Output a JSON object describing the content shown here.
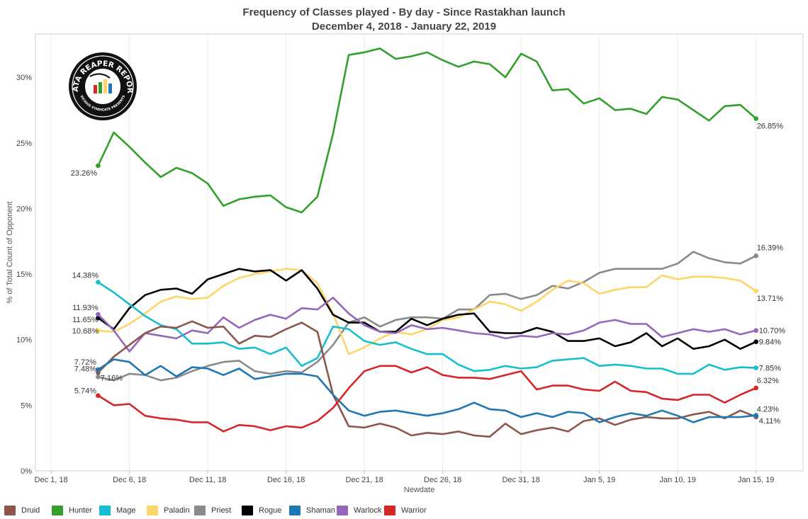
{
  "chart_data": {
    "type": "line",
    "title": "Frequency of Classes played - By day - Since Rastakhan launch",
    "subtitle": "December 4, 2018 - January 22, 2019",
    "xlabel": "Newdate",
    "ylabel": "% of Total Count of Opponent",
    "x_ticks": [
      "Dec 1, 18",
      "Dec 6, 18",
      "Dec 11, 18",
      "Dec 16, 18",
      "Dec 21, 18",
      "Dec 26, 18",
      "Dec 31, 18",
      "Jan 5, 19",
      "Jan 10, 19",
      "Jan 15, 19"
    ],
    "x_range": [
      "2018-11-30",
      "2019-01-18"
    ],
    "y_ticks": [
      "0%",
      "5%",
      "10%",
      "15%",
      "20%",
      "25%",
      "30%"
    ],
    "ylim": [
      0,
      33.3
    ],
    "grid": "vertical",
    "legend_position": "bottom",
    "dates": [
      "2018-12-04",
      "2018-12-05",
      "2018-12-06",
      "2018-12-07",
      "2018-12-08",
      "2018-12-09",
      "2018-12-10",
      "2018-12-11",
      "2018-12-12",
      "2018-12-13",
      "2018-12-14",
      "2018-12-15",
      "2018-12-16",
      "2018-12-17",
      "2018-12-18",
      "2018-12-19",
      "2018-12-20",
      "2018-12-21",
      "2018-12-22",
      "2018-12-23",
      "2018-12-24",
      "2018-12-25",
      "2018-12-26",
      "2018-12-27",
      "2018-12-28",
      "2018-12-29",
      "2018-12-30",
      "2018-12-31",
      "2019-01-01",
      "2019-01-02",
      "2019-01-03",
      "2019-01-04",
      "2019-01-05",
      "2019-01-06",
      "2019-01-07",
      "2019-01-08",
      "2019-01-09",
      "2019-01-10",
      "2019-01-11",
      "2019-01-12",
      "2019-01-13",
      "2019-01-14",
      "2019-01-15"
    ],
    "series": [
      {
        "name": "Hunter",
        "color": "#33a02c",
        "start_label": "23.26%",
        "end_label": "26.85%",
        "values": [
          23.26,
          25.8,
          24.7,
          23.5,
          22.4,
          23.1,
          22.7,
          21.9,
          20.2,
          20.7,
          20.9,
          21.0,
          20.1,
          19.7,
          20.9,
          25.7,
          31.7,
          31.9,
          32.2,
          31.4,
          31.6,
          31.9,
          31.3,
          30.8,
          31.2,
          31.0,
          30.0,
          31.8,
          31.2,
          29.0,
          29.1,
          28.0,
          28.4,
          27.5,
          27.6,
          27.2,
          28.5,
          28.3,
          27.5,
          26.7,
          27.8,
          27.9,
          26.85
        ]
      },
      {
        "name": "Priest",
        "color": "#8a8a8a",
        "start_label": "7.16%",
        "end_label": "16.39%",
        "values": [
          7.16,
          6.9,
          7.4,
          7.3,
          6.9,
          7.1,
          7.6,
          8.0,
          8.3,
          8.4,
          7.6,
          7.4,
          7.6,
          7.5,
          8.3,
          9.6,
          11.3,
          11.7,
          11.0,
          11.5,
          11.7,
          11.7,
          11.6,
          12.3,
          12.3,
          13.4,
          13.5,
          13.1,
          13.4,
          14.1,
          13.9,
          14.4,
          15.1,
          15.4,
          15.4,
          15.4,
          15.4,
          15.8,
          16.7,
          16.2,
          15.9,
          15.8,
          16.39
        ]
      },
      {
        "name": "Paladin",
        "color": "#fdd56b",
        "start_label": "10.68%",
        "end_label": "13.71%",
        "values": [
          10.68,
          10.6,
          11.2,
          12.0,
          12.9,
          13.3,
          13.1,
          13.2,
          14.1,
          14.7,
          15.0,
          15.2,
          15.4,
          15.3,
          14.3,
          12.0,
          8.9,
          9.4,
          10.1,
          10.6,
          10.4,
          10.8,
          11.5,
          11.7,
          12.3,
          12.9,
          12.7,
          12.2,
          12.9,
          13.8,
          14.5,
          14.3,
          13.5,
          13.8,
          14.0,
          14.0,
          14.9,
          14.6,
          14.8,
          14.8,
          14.7,
          14.5,
          13.71
        ]
      },
      {
        "name": "Rogue",
        "color": "#000000",
        "start_label": "11.65%",
        "end_label": "9.84%",
        "values": [
          11.65,
          10.8,
          12.4,
          13.4,
          13.8,
          13.9,
          13.5,
          14.6,
          15.0,
          15.4,
          15.2,
          15.3,
          14.5,
          15.3,
          13.9,
          11.9,
          11.3,
          11.3,
          10.6,
          10.6,
          11.6,
          11.1,
          11.6,
          11.9,
          12.0,
          10.6,
          10.5,
          10.5,
          10.9,
          10.6,
          9.9,
          9.9,
          10.1,
          9.5,
          9.8,
          10.5,
          9.5,
          10.1,
          9.3,
          9.5,
          10.0,
          9.3,
          9.84
        ]
      },
      {
        "name": "Warlock",
        "color": "#9467bd",
        "start_label": "11.93%",
        "end_label": "10.70%",
        "values": [
          11.93,
          10.7,
          9.1,
          10.5,
          10.3,
          10.1,
          10.7,
          10.5,
          11.7,
          10.9,
          11.5,
          11.9,
          11.6,
          12.4,
          12.3,
          13.2,
          12.0,
          11.1,
          10.6,
          10.5,
          11.1,
          10.8,
          10.9,
          10.7,
          10.5,
          10.4,
          10.1,
          10.3,
          10.2,
          10.5,
          10.4,
          10.7,
          11.3,
          11.5,
          11.2,
          11.2,
          10.2,
          10.5,
          10.8,
          10.6,
          10.8,
          10.4,
          10.7
        ]
      },
      {
        "name": "Mage",
        "color": "#17becf",
        "start_label": "14.38%",
        "end_label": "7.85%",
        "values": [
          14.38,
          13.6,
          12.7,
          11.8,
          11.1,
          10.8,
          9.7,
          9.7,
          9.8,
          9.3,
          9.4,
          8.9,
          9.4,
          8.0,
          8.6,
          11.0,
          10.8,
          9.9,
          9.6,
          9.8,
          9.3,
          8.9,
          8.9,
          8.1,
          7.6,
          7.7,
          8.0,
          7.8,
          7.9,
          8.4,
          8.5,
          8.6,
          8.0,
          8.1,
          8.0,
          7.8,
          7.8,
          7.4,
          7.4,
          8.1,
          7.7,
          7.9,
          7.85
        ]
      },
      {
        "name": "Druid",
        "color": "#8c564b",
        "start_label": "7.48%",
        "end_label": "4.11%",
        "values": [
          7.48,
          8.7,
          9.6,
          10.5,
          11.0,
          10.9,
          11.4,
          10.9,
          11.0,
          9.7,
          10.3,
          10.2,
          10.8,
          11.3,
          10.6,
          5.8,
          3.4,
          3.3,
          3.6,
          3.3,
          2.7,
          2.9,
          2.8,
          3.0,
          2.7,
          2.6,
          3.6,
          2.8,
          3.1,
          3.3,
          3.0,
          3.8,
          4.0,
          3.5,
          3.9,
          4.1,
          4.0,
          4.0,
          4.3,
          4.5,
          4.0,
          4.6,
          4.11
        ]
      },
      {
        "name": "Shaman",
        "color": "#1f77b4",
        "start_label": "7.72%",
        "end_label": "4.23%",
        "values": [
          7.72,
          8.5,
          8.3,
          7.3,
          8.0,
          7.2,
          7.9,
          7.8,
          7.3,
          7.8,
          7.0,
          7.2,
          7.4,
          7.4,
          7.2,
          5.8,
          4.6,
          4.2,
          4.5,
          4.6,
          4.4,
          4.2,
          4.4,
          4.7,
          5.2,
          4.7,
          4.6,
          4.1,
          4.4,
          4.1,
          4.5,
          4.4,
          3.7,
          4.1,
          4.4,
          4.2,
          4.6,
          4.2,
          3.7,
          4.1,
          4.1,
          4.1,
          4.23
        ]
      },
      {
        "name": "Warrior",
        "color": "#d62728",
        "start_label": "5.74%",
        "end_label": "6.32%",
        "values": [
          5.74,
          5.0,
          5.1,
          4.2,
          4.0,
          3.9,
          3.7,
          3.7,
          3.0,
          3.5,
          3.4,
          3.1,
          3.4,
          3.3,
          3.8,
          4.8,
          6.3,
          7.6,
          8.0,
          8.0,
          7.5,
          7.9,
          7.3,
          7.1,
          7.1,
          7.0,
          7.3,
          7.6,
          6.2,
          6.5,
          6.5,
          6.2,
          6.1,
          6.8,
          6.1,
          6.0,
          5.5,
          5.4,
          5.8,
          5.8,
          5.2,
          5.8,
          6.32
        ]
      }
    ]
  },
  "legend": [
    {
      "name": "Druid",
      "color": "#8c564b"
    },
    {
      "name": "Hunter",
      "color": "#33a02c"
    },
    {
      "name": "Mage",
      "color": "#17becf"
    },
    {
      "name": "Paladin",
      "color": "#fdd56b"
    },
    {
      "name": "Priest",
      "color": "#8a8a8a"
    },
    {
      "name": "Rogue",
      "color": "#000000"
    },
    {
      "name": "Shaman",
      "color": "#1f77b4"
    },
    {
      "name": "Warlock",
      "color": "#9467bd"
    },
    {
      "name": "Warrior",
      "color": "#d62728"
    }
  ],
  "logo": {
    "text": "DATA REAPER REPORT",
    "subtext": "VICIOUS SYNDICATE PRESENTS"
  }
}
